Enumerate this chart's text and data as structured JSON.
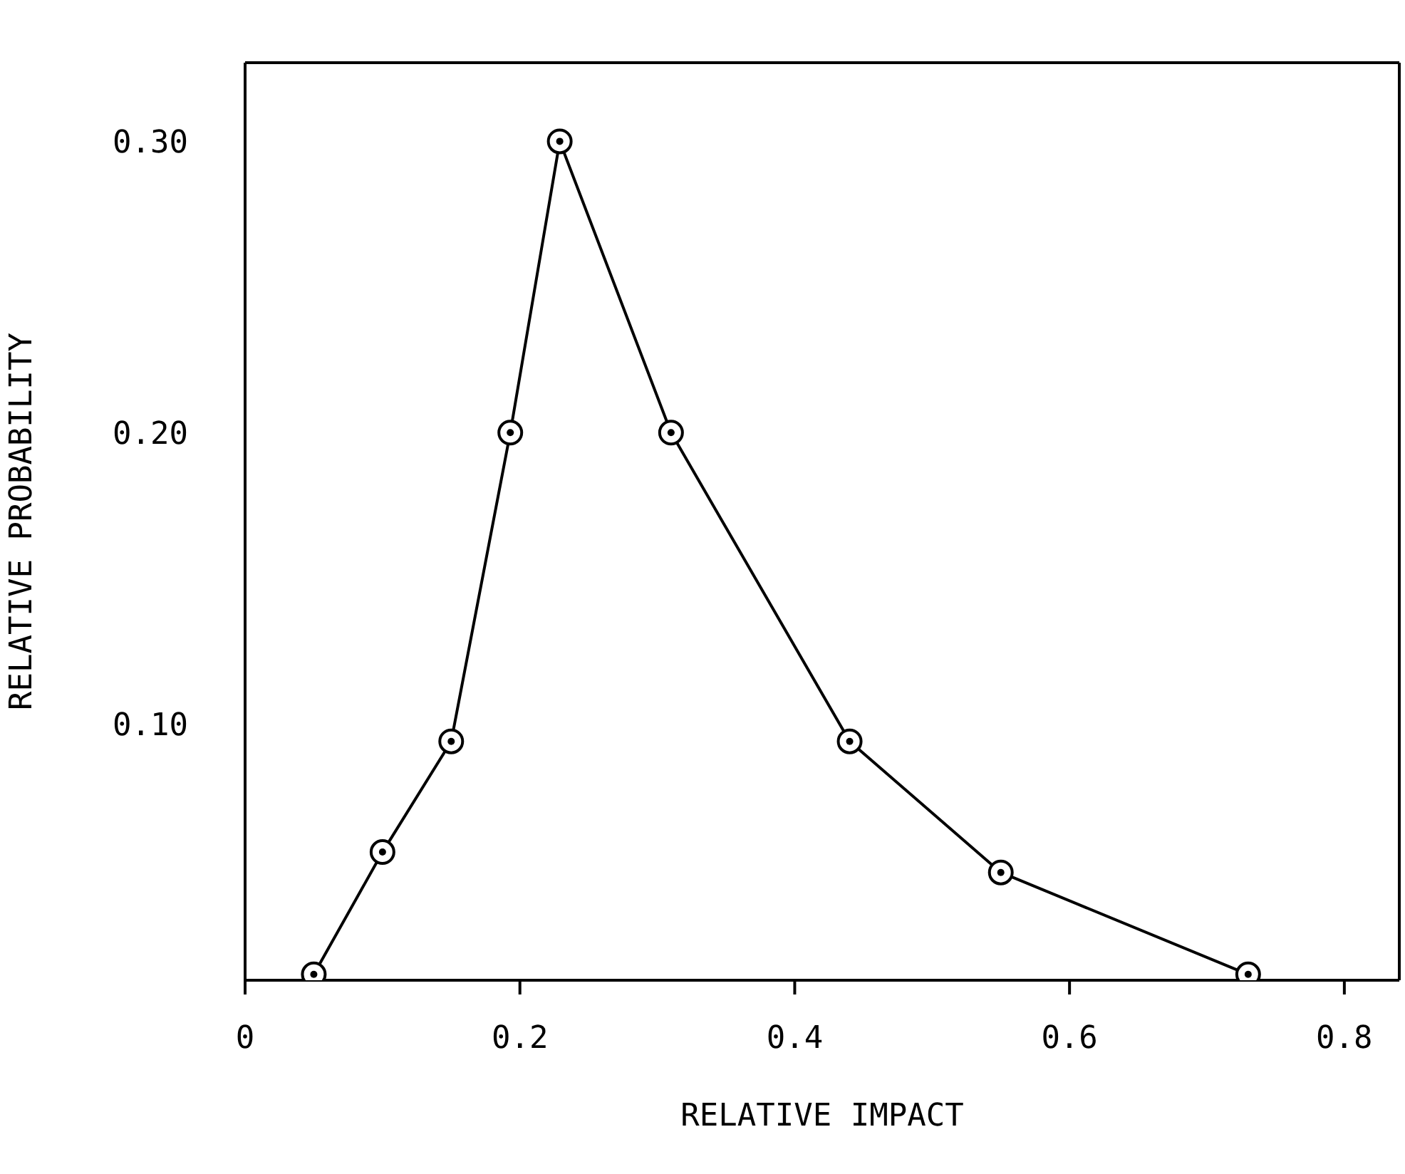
{
  "chart_data": {
    "type": "line",
    "xlabel": "RELATIVE IMPACT",
    "ylabel": "RELATIVE PROBABILITY",
    "x": [
      0.05,
      0.1,
      0.15,
      0.193,
      0.229,
      0.31,
      0.44,
      0.55,
      0.73
    ],
    "series": [
      {
        "color": "#000000",
        "values": [
          0.014,
          0.056,
          0.094,
          0.2,
          0.3,
          0.2,
          0.094,
          0.049,
          0.014
        ]
      }
    ],
    "xlim": [
      0,
      0.84
    ],
    "ylim": [
      0.012,
      0.327
    ],
    "xticks": [
      0,
      0.2,
      0.4,
      0.6,
      0.8
    ],
    "yticks": [
      {
        "value": 0.1,
        "label": "0.10"
      },
      {
        "value": 0.2,
        "label": "0.20"
      },
      {
        "value": 0.3,
        "label": "0.30"
      }
    ],
    "grid": false,
    "legend": false,
    "marker": "circle",
    "line_style": "solid"
  }
}
